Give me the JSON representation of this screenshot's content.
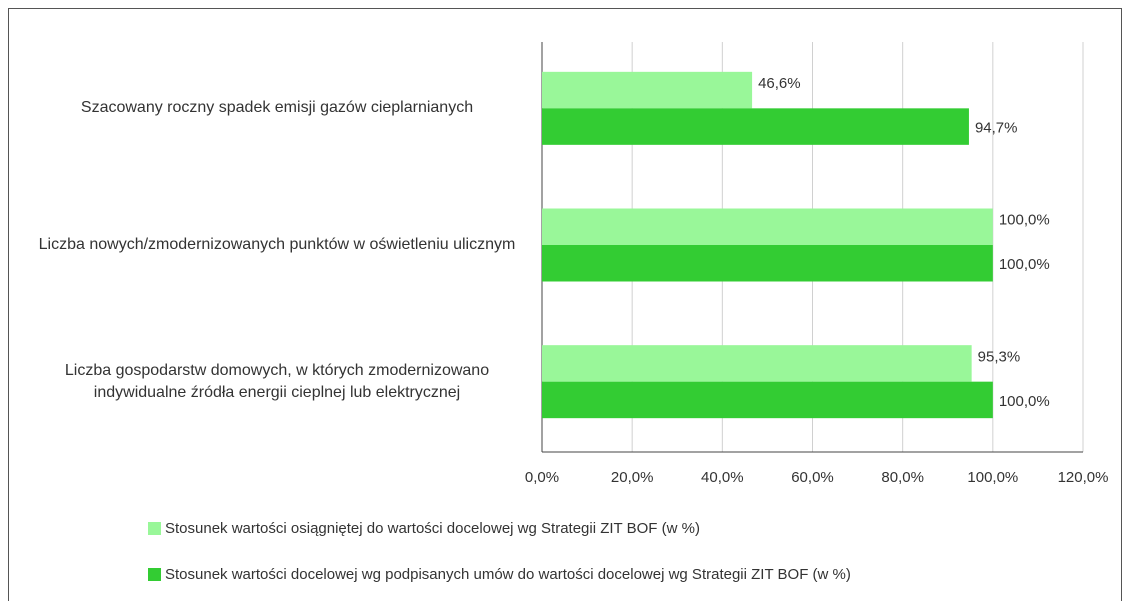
{
  "chart_data": {
    "type": "hbar",
    "categories": [
      "Szacowany roczny spadek emisji gazów cieplarnianych",
      "Liczba nowych/zmodernizowanych punktów w oświetleniu ulicznym",
      "Liczba gospodarstw domowych, w których zmodernizowano indywidualne źródła energii cieplnej lub elektrycznej"
    ],
    "series": [
      {
        "name": "Stosunek wartości osiągniętej do wartości docelowej wg Strategii ZIT BOF (w %)",
        "color": "#99f799",
        "values": [
          46.6,
          100.0,
          95.3
        ],
        "value_labels": [
          "46,6%",
          "100,0%",
          "95,3%"
        ]
      },
      {
        "name": "Stosunek wartości docelowej wg podpisanych umów do wartości docelowej wg Strategii ZIT BOF (w %)",
        "color": "#33cc33",
        "values": [
          94.7,
          100.0,
          100.0
        ],
        "value_labels": [
          "94,7%",
          "100,0%",
          "100,0%"
        ]
      }
    ],
    "xlim": [
      0,
      120
    ],
    "xticks": [
      {
        "value": 0,
        "label": "0,0%"
      },
      {
        "value": 20,
        "label": "20,0%"
      },
      {
        "value": 40,
        "label": "40,0%"
      },
      {
        "value": 60,
        "label": "60,0%"
      },
      {
        "value": 80,
        "label": "80,0%"
      },
      {
        "value": 100,
        "label": "100,0%"
      },
      {
        "value": 120,
        "label": "120,0%"
      }
    ],
    "grid": true,
    "legend": "bottom"
  }
}
